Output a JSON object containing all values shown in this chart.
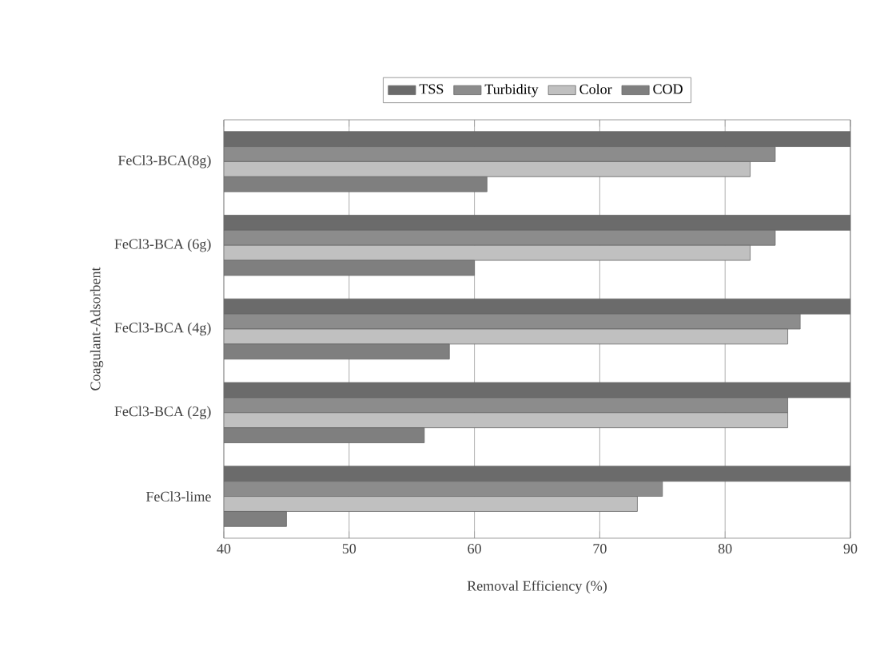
{
  "chart_data": {
    "type": "bar",
    "orientation": "horizontal",
    "xlabel": "Removal Efficiency (%)",
    "ylabel": "Coagulant-Adsorbent",
    "categories": [
      "FeCl3-BCA(8g)",
      "FeCl3-BCA (6g)",
      "FeCl3-BCA (4g)",
      "FeCl3-BCA (2g)",
      "FeCl3-lime"
    ],
    "series": [
      {
        "name": "TSS",
        "color": "#6b6b6b",
        "values": [
          90,
          90,
          90,
          90,
          90
        ]
      },
      {
        "name": "Turbidity",
        "color": "#8c8c8c",
        "values": [
          84,
          84,
          86,
          85,
          75
        ]
      },
      {
        "name": "Color",
        "color": "#c0c0c0",
        "values": [
          82,
          82,
          85,
          85,
          73
        ]
      },
      {
        "name": "COD",
        "color": "#7f7f7f",
        "values": [
          61,
          60,
          58,
          56,
          45
        ]
      }
    ],
    "xlim": [
      40,
      90
    ],
    "xticks": [
      40,
      50,
      60,
      70,
      80,
      90
    ],
    "grid": "x",
    "legend": "top"
  }
}
